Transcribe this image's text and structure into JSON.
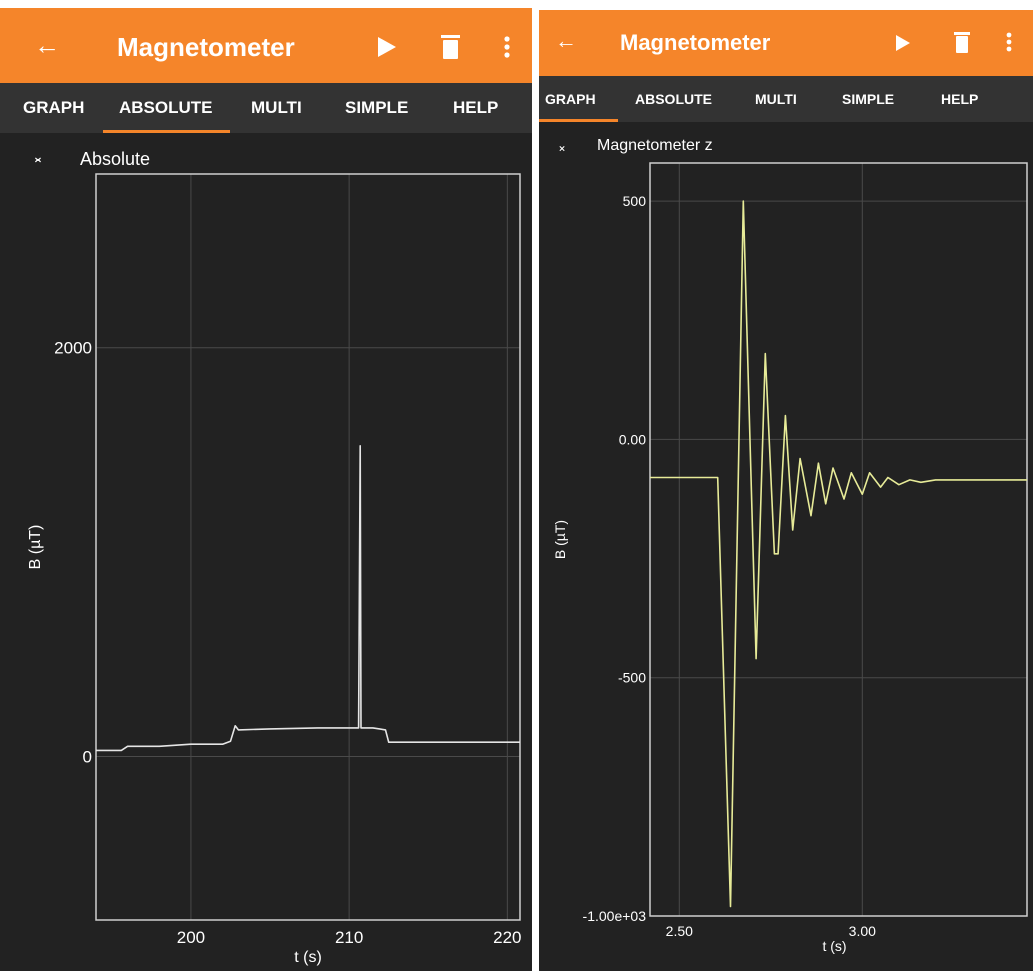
{
  "left": {
    "toolbar": {
      "title": "Magnetometer",
      "back_icon": "arrow-left-icon",
      "play_icon": "play-icon",
      "delete_icon": "trash-icon",
      "menu_icon": "more-vert-icon"
    },
    "tabs": [
      "GRAPH",
      "ABSOLUTE",
      "MULTI",
      "SIMPLE",
      "HELP"
    ],
    "active_tab": "ABSOLUTE",
    "graph_title": "Absolute",
    "chart_data": {
      "type": "line",
      "title": "Absolute",
      "xlabel": "t (s)",
      "ylabel": "B (µT)",
      "xlim": [
        194.0,
        220.8
      ],
      "ylim": [
        -800,
        2850
      ],
      "xticks": [
        200,
        210,
        220
      ],
      "xtick_labels": [
        "200",
        "210",
        "220"
      ],
      "yticks": [
        0,
        2000
      ],
      "ytick_labels": [
        "0",
        "2000"
      ],
      "grid": true,
      "line_color": "#e6e6e6",
      "series": [
        {
          "x": [
            194.0,
            195.0,
            195.6,
            196.0,
            198.0,
            200.0,
            202.0,
            202.5,
            202.8,
            203.0,
            205.0,
            208.0,
            210.0,
            210.6,
            210.7,
            210.75,
            210.8,
            210.9,
            211.5,
            212.3,
            212.5,
            214.0,
            217.0,
            220.0,
            220.8
          ],
          "y": [
            30,
            30,
            30,
            50,
            50,
            60,
            60,
            75,
            150,
            130,
            135,
            140,
            140,
            140,
            1520,
            140,
            140,
            140,
            140,
            130,
            70,
            70,
            70,
            70,
            70
          ]
        }
      ]
    }
  },
  "right": {
    "toolbar": {
      "title": "Magnetometer",
      "back_icon": "arrow-left-icon",
      "play_icon": "play-icon",
      "delete_icon": "trash-icon",
      "menu_icon": "more-vert-icon"
    },
    "tabs": [
      "GRAPH",
      "ABSOLUTE",
      "MULTI",
      "SIMPLE",
      "HELP"
    ],
    "active_tab": "GRAPH",
    "graph_title": "Magnetometer z",
    "chart_data": {
      "type": "line",
      "title": "Magnetometer z",
      "xlabel": "t (s)",
      "ylabel": "B (µT)",
      "xlim": [
        2.42,
        3.45
      ],
      "ylim": [
        -1000,
        580
      ],
      "xticks": [
        2.5,
        3.0
      ],
      "xtick_labels": [
        "2.50",
        "3.00"
      ],
      "yticks": [
        500,
        0,
        -500,
        -1000
      ],
      "ytick_labels": [
        "500",
        "0.00",
        "-500",
        "-1.00e+03"
      ],
      "grid": true,
      "line_color": "#e7eb98",
      "series": [
        {
          "x": [
            2.42,
            2.6,
            2.605,
            2.64,
            2.675,
            2.71,
            2.735,
            2.76,
            2.77,
            2.79,
            2.81,
            2.83,
            2.86,
            2.88,
            2.9,
            2.92,
            2.95,
            2.97,
            3.0,
            3.02,
            3.05,
            3.07,
            3.1,
            3.13,
            3.16,
            3.2,
            3.25,
            3.35,
            3.45
          ],
          "y": [
            -80,
            -80,
            -80,
            -980,
            500,
            -460,
            180,
            -240,
            -240,
            50,
            -190,
            -40,
            -160,
            -50,
            -135,
            -60,
            -125,
            -70,
            -115,
            -70,
            -100,
            -80,
            -95,
            -85,
            -90,
            -85,
            -85,
            -85,
            -85
          ]
        }
      ]
    }
  }
}
